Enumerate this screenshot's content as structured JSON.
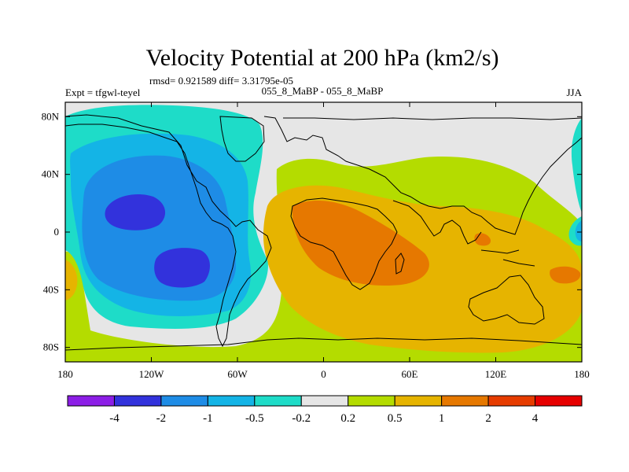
{
  "chart_data": {
    "type": "contour-map",
    "title": "Velocity Potential at 200 hPa (km2/s)",
    "stats_line": "rmsd= 0.921589 diff= 3.31795e-05",
    "left_label": "Expt = tfgwl-teyel",
    "center_label": "055_8_MaBP - 055_8_MaBP",
    "right_label": "JJA",
    "units": "km2/s",
    "xlim": [
      -180,
      180
    ],
    "ylim": [
      -90,
      90
    ],
    "x_ticks": [
      {
        "value": -180,
        "label": "180"
      },
      {
        "value": -120,
        "label": "120W"
      },
      {
        "value": -60,
        "label": "60W"
      },
      {
        "value": 0,
        "label": "0"
      },
      {
        "value": 60,
        "label": "60E"
      },
      {
        "value": 120,
        "label": "120E"
      },
      {
        "value": 180,
        "label": "180"
      }
    ],
    "y_ticks": [
      {
        "value": 80,
        "label": "80N"
      },
      {
        "value": 40,
        "label": "40N"
      },
      {
        "value": 0,
        "label": "0"
      },
      {
        "value": -40,
        "label": "40S"
      },
      {
        "value": -80,
        "label": "80S"
      }
    ],
    "levels": [
      "-4",
      "-2",
      "-1",
      "-0.5",
      "-0.2",
      "0.2",
      "0.5",
      "1",
      "2",
      "4"
    ],
    "level_colors": [
      "#8c1ee6",
      "#3232dc",
      "#1e8ce6",
      "#14b4e6",
      "#1edcc8",
      "#e6e6e6",
      "#b4dc00",
      "#e6b400",
      "#e67800",
      "#e63c00",
      "#e60000"
    ],
    "features": [
      {
        "name": "velocity potential minimum, North Pacific",
        "lon": -128,
        "lat": 18,
        "value_range": "-2 to -1"
      },
      {
        "name": "velocity potential minimum, South Pacific",
        "lon": -110,
        "lat": -20,
        "value_range": "-2 to -1"
      },
      {
        "name": "velocity potential maximum, Africa / Indian Ocean",
        "lon": 40,
        "lat": -5,
        "value_range": "1 to 2"
      },
      {
        "name": "velocity potential maximum, Indian Ocean",
        "lon": 112,
        "lat": -5,
        "value_range": "1 to 2"
      },
      {
        "name": "velocity potential maximum, South-west Pacific",
        "lon": 168,
        "lat": -30,
        "value_range": "1 to 2"
      }
    ]
  }
}
